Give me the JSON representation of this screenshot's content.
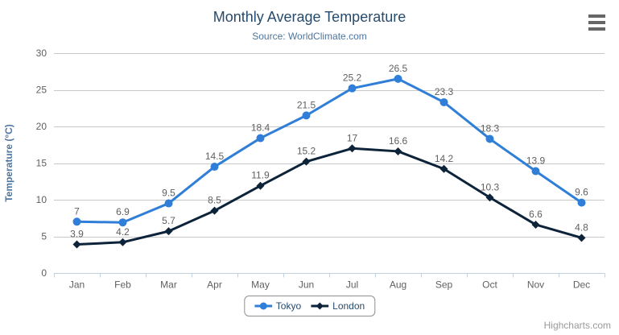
{
  "credits": "Highcharts.com",
  "export_menu_icon": "hamburger-menu-icon",
  "colors": {
    "tokyo": "#2f7ed8",
    "london": "#0d233a",
    "title": "#274b6d",
    "subtitle": "#4d759e",
    "axis_title": "#4d759e",
    "axis_labels": "#606060",
    "data_labels": "#606060",
    "grid_line": "#c8c8c8",
    "axis_line": "#c0d0e0",
    "legend_text": "#274b6d",
    "legend_border": "#909090",
    "credits_text": "#9a9a9a",
    "menu_icon": "#666666",
    "background": "#ffffff"
  },
  "chart_data": {
    "type": "line",
    "title": "Monthly Average Temperature",
    "subtitle": "Source: WorldClimate.com",
    "categories": [
      "Jan",
      "Feb",
      "Mar",
      "Apr",
      "May",
      "Jun",
      "Jul",
      "Aug",
      "Sep",
      "Oct",
      "Nov",
      "Dec"
    ],
    "series": [
      {
        "name": "Tokyo",
        "color": "#2f7ed8",
        "marker": "circle",
        "values": [
          7.0,
          6.9,
          9.5,
          14.5,
          18.4,
          21.5,
          25.2,
          26.5,
          23.3,
          18.3,
          13.9,
          9.6
        ]
      },
      {
        "name": "London",
        "color": "#0d233a",
        "marker": "diamond",
        "values": [
          3.9,
          4.2,
          5.7,
          8.5,
          11.9,
          15.2,
          17.0,
          16.6,
          14.2,
          10.3,
          6.6,
          4.8
        ]
      }
    ],
    "xlabel": "",
    "ylabel": "Temperature (°C)",
    "ylim": [
      0,
      30
    ],
    "ytick_interval": 5,
    "yticks": [
      0,
      5,
      10,
      15,
      20,
      25,
      30
    ],
    "grid": true,
    "data_labels": true,
    "legend_position": "bottom-center"
  }
}
